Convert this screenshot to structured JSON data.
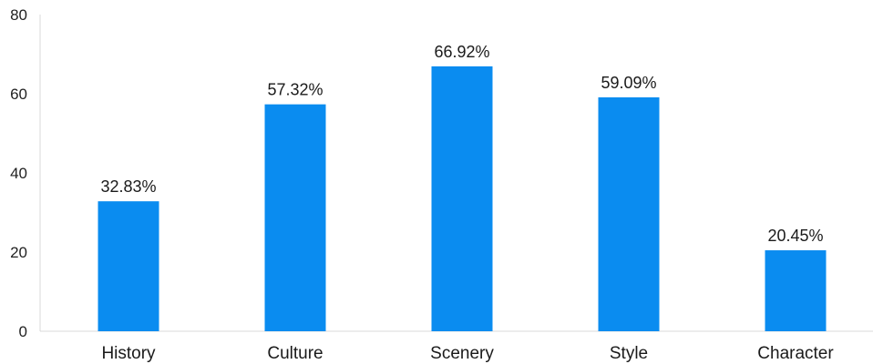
{
  "chart_data": {
    "type": "bar",
    "title": "",
    "xlabel": "",
    "ylabel": "",
    "categories": [
      "History",
      "Culture",
      "Scenery",
      "Style",
      "Character"
    ],
    "values": [
      32.83,
      57.32,
      66.92,
      59.09,
      20.45
    ],
    "data_labels": [
      "32.83%",
      "57.32%",
      "66.92%",
      "59.09%",
      "20.45%"
    ],
    "ylim": [
      0,
      80
    ],
    "yticks": [
      0,
      20,
      40,
      60,
      80
    ],
    "ytick_labels": [
      "0",
      "20",
      "40",
      "60",
      "80"
    ],
    "grid": false,
    "legend": "none",
    "bar_color": "#0a8cf0",
    "axis_color": "#d9d9d9"
  }
}
